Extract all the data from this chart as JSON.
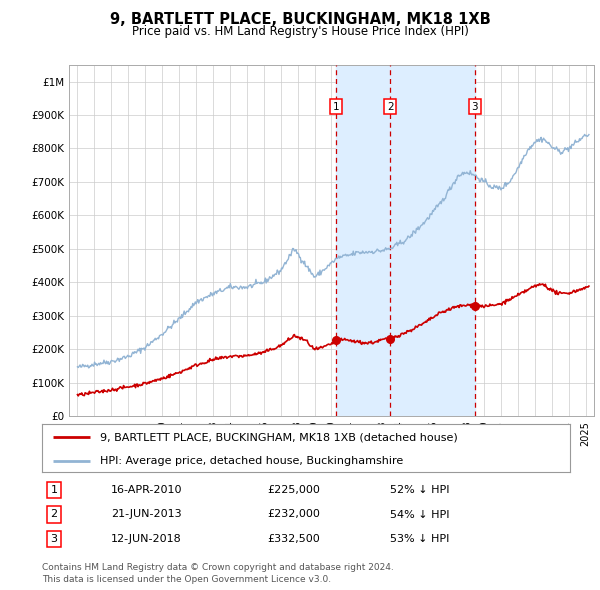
{
  "title": "9, BARTLETT PLACE, BUCKINGHAM, MK18 1XB",
  "subtitle": "Price paid vs. HM Land Registry's House Price Index (HPI)",
  "legend_line1": "9, BARTLETT PLACE, BUCKINGHAM, MK18 1XB (detached house)",
  "legend_line2": "HPI: Average price, detached house, Buckinghamshire",
  "transactions": [
    {
      "num": 1,
      "date": "2010-04-16",
      "x_num": 2010.29,
      "price": 225000,
      "pct": "52% ↓ HPI"
    },
    {
      "num": 2,
      "date": "2013-06-21",
      "x_num": 2013.47,
      "price": 232000,
      "pct": "54% ↓ HPI"
    },
    {
      "num": 3,
      "date": "2018-06-12",
      "x_num": 2018.45,
      "price": 332500,
      "pct": "53% ↓ HPI"
    }
  ],
  "table_rows": [
    {
      "num": 1,
      "date": "16-APR-2010",
      "price": "£225,000",
      "pct": "52% ↓ HPI"
    },
    {
      "num": 2,
      "date": "21-JUN-2013",
      "price": "£232,000",
      "pct": "54% ↓ HPI"
    },
    {
      "num": 3,
      "date": "12-JUN-2018",
      "price": "£332,500",
      "pct": "53% ↓ HPI"
    }
  ],
  "footnote1": "Contains HM Land Registry data © Crown copyright and database right 2024.",
  "footnote2": "This data is licensed under the Open Government Licence v3.0.",
  "hpi_color": "#92b4d4",
  "price_color": "#cc0000",
  "fill_color": "#ddeeff",
  "vline_color": "#cc0000",
  "marker_color": "#cc0000",
  "ylabel_ticks": [
    "£0",
    "£100K",
    "£200K",
    "£300K",
    "£400K",
    "£500K",
    "£600K",
    "£700K",
    "£800K",
    "£900K",
    "£1M"
  ],
  "ylim": [
    0,
    1050000
  ],
  "xlim_start": 1994.5,
  "xlim_end": 2025.5,
  "background_color": "#ffffff",
  "grid_color": "#cccccc",
  "title_fontsize": 10.5,
  "subtitle_fontsize": 8.5,
  "tick_fontsize": 7.5,
  "legend_fontsize": 8,
  "table_fontsize": 8,
  "footnote_fontsize": 6.5
}
